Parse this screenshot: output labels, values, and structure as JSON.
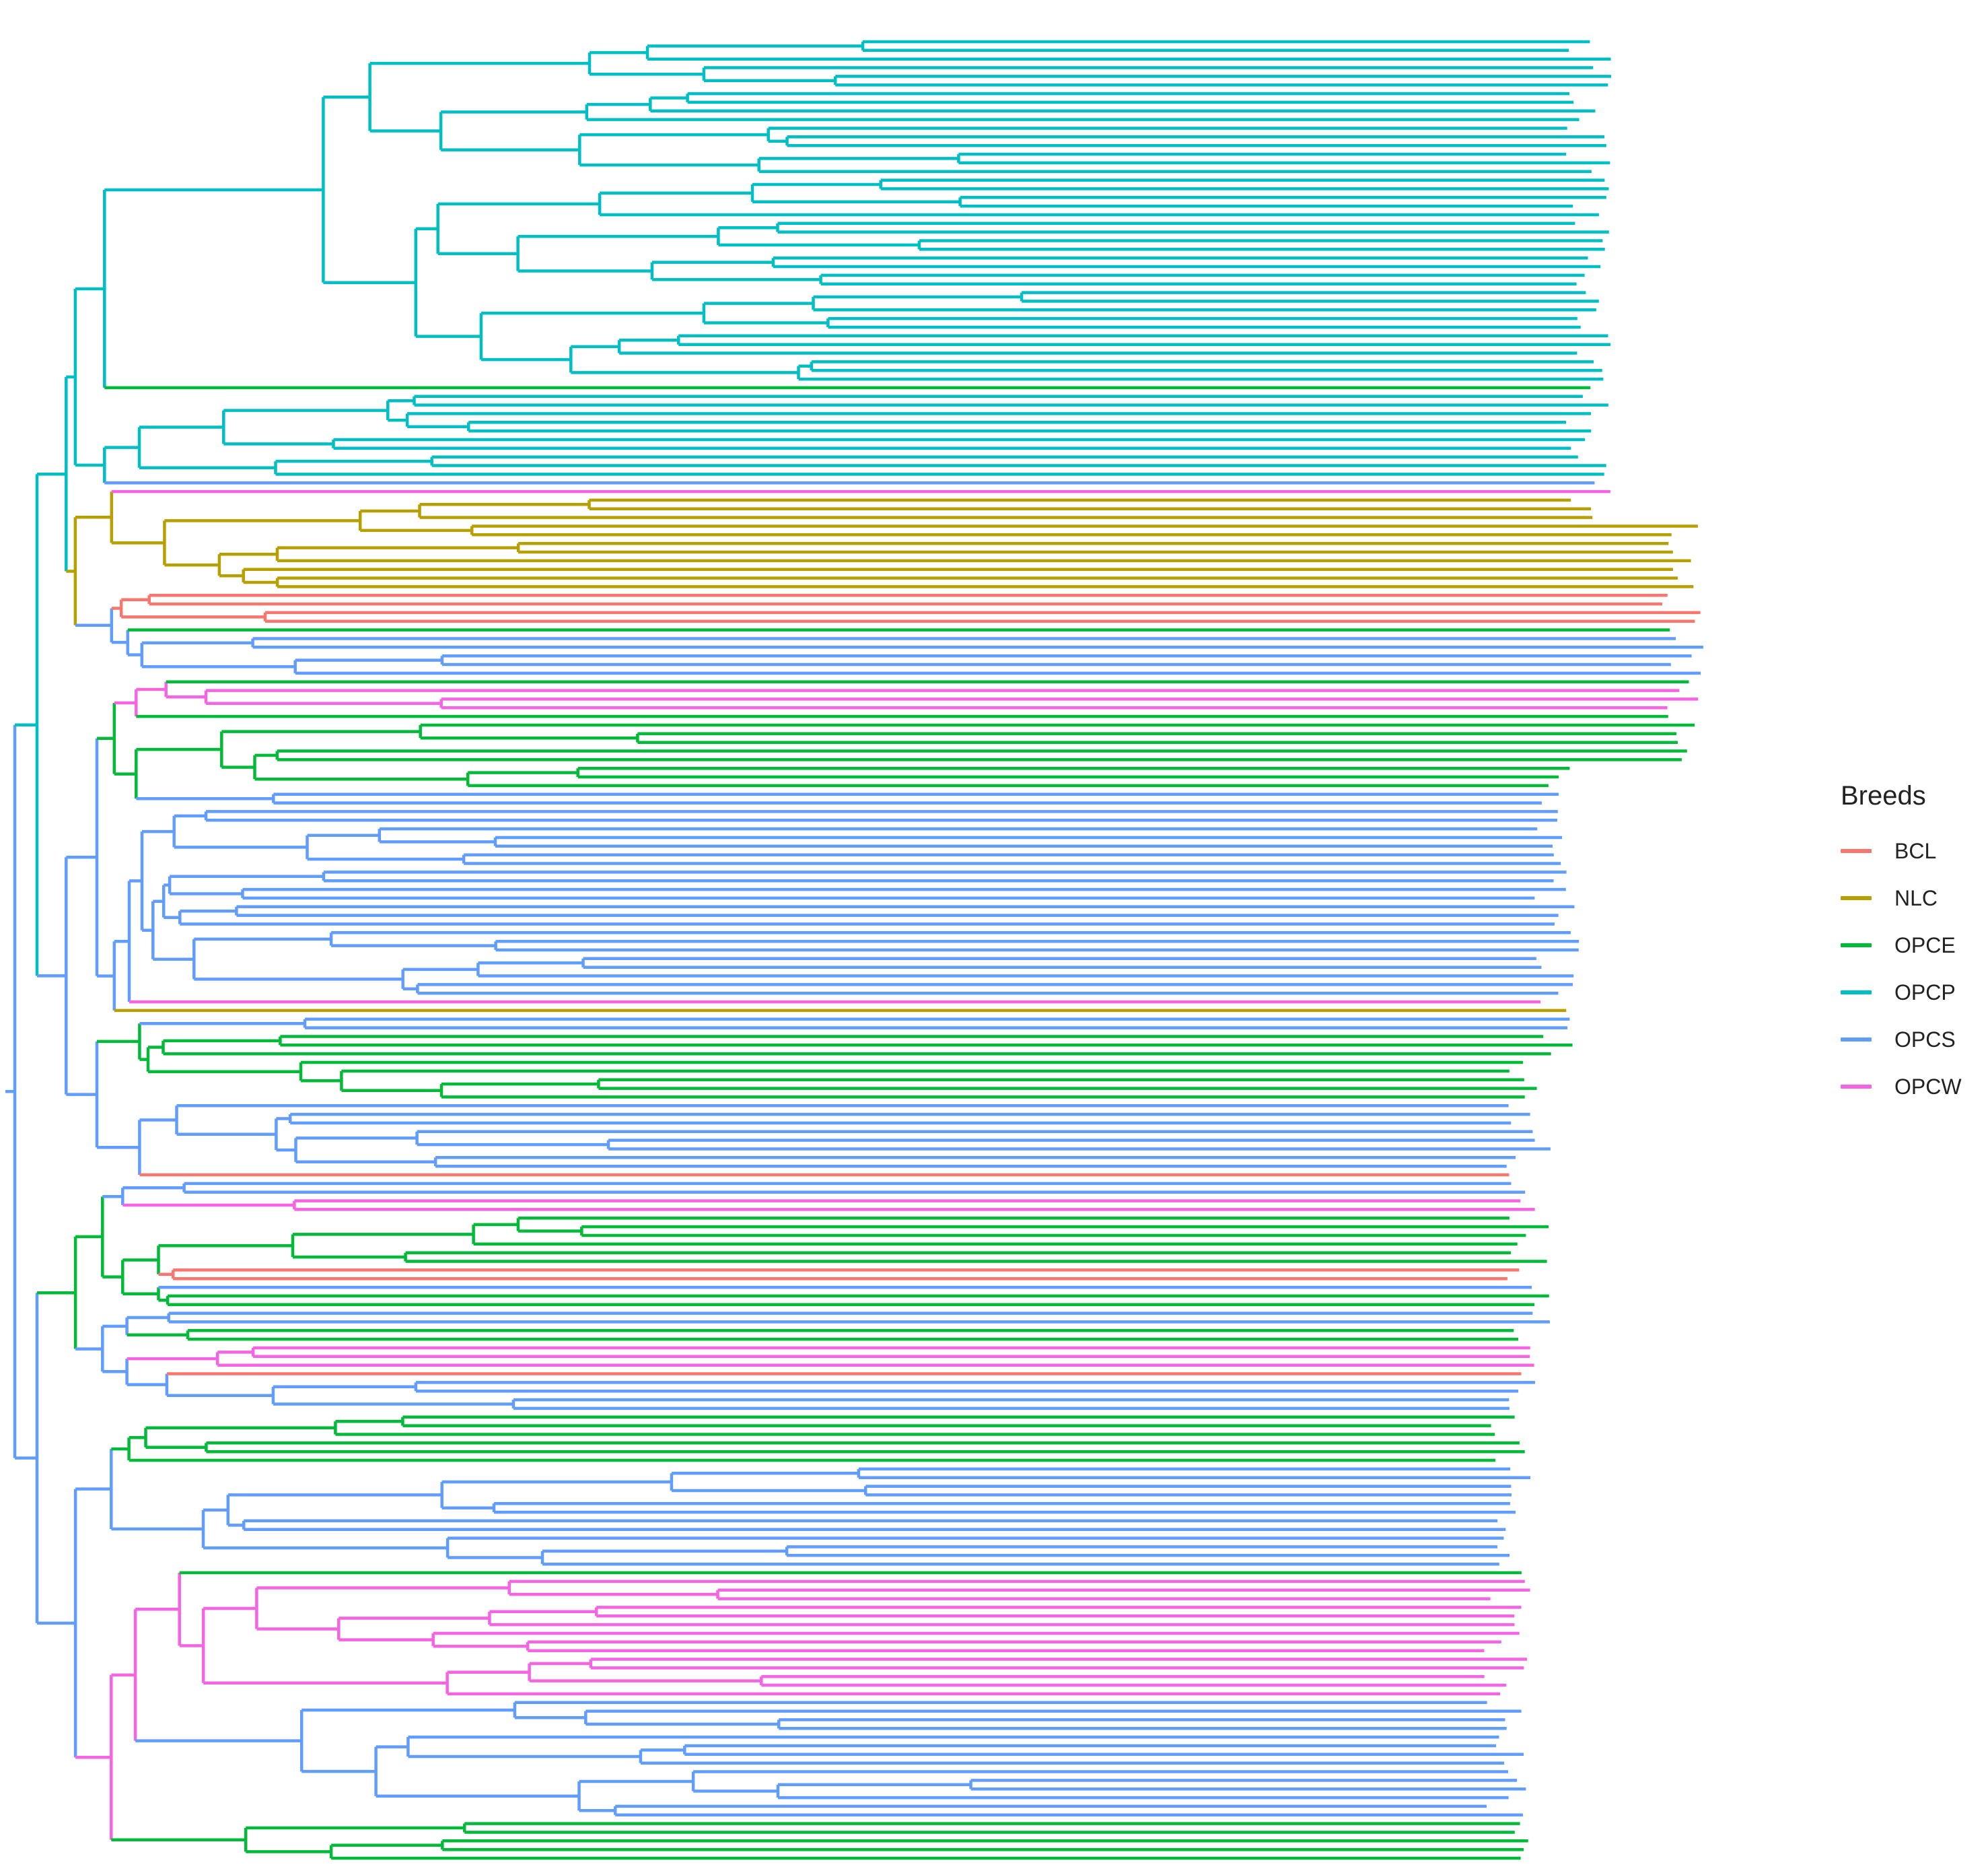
{
  "chart_data": {
    "type": "dendrogram",
    "title": "",
    "legend_title": "Breeds",
    "legend_position": "right",
    "breeds": [
      {
        "name": "BCL",
        "color": "#F8766D"
      },
      {
        "name": "NLC",
        "color": "#B79F00"
      },
      {
        "name": "OPCE",
        "color": "#00BA38"
      },
      {
        "name": "OPCP",
        "color": "#00BFC4"
      },
      {
        "name": "OPCS",
        "color": "#619CFF"
      },
      {
        "name": "OPCW",
        "color": "#F564E3"
      }
    ],
    "clusters": [
      {
        "breed": "OPCP",
        "leaves": 40
      },
      {
        "breed": "OPCE",
        "leaves": 1
      },
      {
        "breed": "OPCP",
        "leaves": 10
      },
      {
        "breed": "OPCS",
        "leaves": 1
      },
      {
        "breed": "OPCW",
        "leaves": 1
      },
      {
        "breed": "NLC",
        "leaves": 11
      },
      {
        "breed": "BCL",
        "leaves": 4
      },
      {
        "breed": "OPCE",
        "leaves": 1
      },
      {
        "breed": "OPCS",
        "leaves": 5
      },
      {
        "breed": "OPCE",
        "leaves": 1
      },
      {
        "breed": "OPCW",
        "leaves": 3
      },
      {
        "breed": "OPCE",
        "leaves": 1
      },
      {
        "breed": "OPCE",
        "leaves": 8
      },
      {
        "breed": "OPCS",
        "leaves": 2
      },
      {
        "breed": "OPCS",
        "leaves": 22
      },
      {
        "breed": "OPCW",
        "leaves": 1
      },
      {
        "breed": "NLC",
        "leaves": 1
      },
      {
        "breed": "OPCS",
        "leaves": 2
      },
      {
        "breed": "OPCE",
        "leaves": 8
      },
      {
        "breed": "OPCS",
        "leaves": 1
      },
      {
        "breed": "OPCS",
        "leaves": 7
      },
      {
        "breed": "BCL",
        "leaves": 1
      },
      {
        "breed": "OPCS",
        "leaves": 2
      },
      {
        "breed": "OPCW",
        "leaves": 2
      },
      {
        "breed": "OPCE",
        "leaves": 6
      },
      {
        "breed": "BCL",
        "leaves": 2
      },
      {
        "breed": "OPCS",
        "leaves": 1
      },
      {
        "breed": "OPCE",
        "leaves": 2
      },
      {
        "breed": "OPCS",
        "leaves": 1
      },
      {
        "breed": "OPCS",
        "leaves": 1
      },
      {
        "breed": "OPCE",
        "leaves": 2
      },
      {
        "breed": "OPCW",
        "leaves": 3
      },
      {
        "breed": "BCL",
        "leaves": 1
      },
      {
        "breed": "OPCS",
        "leaves": 4
      },
      {
        "breed": "OPCE",
        "leaves": 5
      },
      {
        "breed": "OPCE",
        "leaves": 1
      },
      {
        "breed": "OPCS",
        "leaves": 12
      },
      {
        "breed": "OPCE",
        "leaves": 1
      },
      {
        "breed": "OPCW",
        "leaves": 14
      },
      {
        "breed": "OPCS",
        "leaves": 14
      },
      {
        "breed": "OPCE",
        "leaves": 5
      }
    ]
  }
}
